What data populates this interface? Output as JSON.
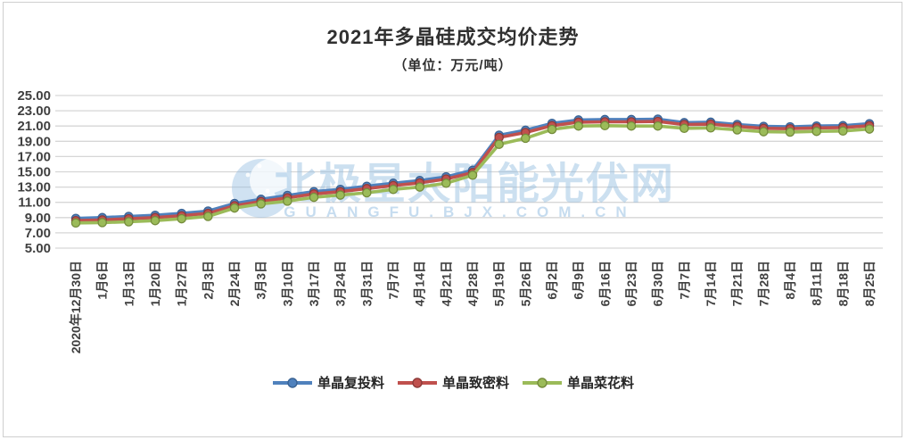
{
  "title": "2021年多晶硅成交均价走势",
  "subtitle": "（单位：万元/吨）",
  "watermark": {
    "brand": "北极星太阳能光伏网",
    "url_text": "GUANGFU.BJX.COM.CN",
    "logo": "crescent-moon-stars-icon"
  },
  "colors": {
    "series_blue": "#4F81BD",
    "series_blue_dark": "#3A6394",
    "series_red": "#C0504D",
    "series_red_dark": "#8E3B39",
    "series_green": "#9BBB59",
    "series_green_dark": "#758C3C",
    "grid": "#D6D6D6",
    "axis_text": "#404040",
    "watermark_blue": "#8FBBE0"
  },
  "chart_data": {
    "type": "line",
    "title": "2021年多晶硅成交均价走势",
    "subtitle_unit": "（单位：万元/吨）",
    "ylim": [
      5,
      25
    ],
    "ytick_step": 2,
    "yticks": [
      "25.00",
      "23.00",
      "21.00",
      "19.00",
      "17.00",
      "15.00",
      "13.00",
      "11.00",
      "9.00",
      "7.00",
      "5.00"
    ],
    "grid": true,
    "legend_position": "bottom",
    "categories": [
      "2020年12月30日",
      "1月6日",
      "1月13日",
      "1月20日",
      "1月27日",
      "2月3日",
      "2月24日",
      "3月3日",
      "3月10日",
      "3月17日",
      "3月24日",
      "3月31日",
      "7月7日",
      "4月14日",
      "4月21日",
      "4月28日",
      "5月19日",
      "5月26日",
      "6月2日",
      "6月9日",
      "6月16日",
      "6月23日",
      "6月30日",
      "7月7日",
      "7月14日",
      "7月21日",
      "7月28日",
      "8月4日",
      "8月11日",
      "8月18日",
      "8月25日"
    ],
    "series": [
      {
        "name": "单晶复投料",
        "color_key": "series_blue",
        "ring_key": "series_blue_dark",
        "values": [
          8.9,
          9.0,
          9.15,
          9.3,
          9.55,
          9.85,
          10.85,
          11.4,
          11.9,
          12.4,
          12.7,
          13.1,
          13.5,
          13.85,
          14.35,
          15.2,
          19.8,
          20.45,
          21.35,
          21.8,
          21.85,
          21.85,
          21.9,
          21.45,
          21.5,
          21.2,
          20.95,
          20.9,
          21.0,
          21.05,
          21.3
        ]
      },
      {
        "name": "单晶致密料",
        "color_key": "series_red",
        "ring_key": "series_red_dark",
        "values": [
          8.6,
          8.7,
          8.85,
          9.0,
          9.25,
          9.55,
          10.55,
          11.1,
          11.6,
          12.1,
          12.4,
          12.8,
          13.2,
          13.55,
          14.05,
          14.9,
          19.5,
          20.15,
          21.05,
          21.5,
          21.55,
          21.55,
          21.6,
          21.2,
          21.25,
          20.95,
          20.7,
          20.65,
          20.75,
          20.8,
          21.05
        ]
      },
      {
        "name": "单晶菜花料",
        "color_key": "series_green",
        "ring_key": "series_green_dark",
        "values": [
          8.3,
          8.35,
          8.45,
          8.6,
          8.85,
          9.15,
          10.25,
          10.8,
          11.15,
          11.65,
          11.95,
          12.25,
          12.7,
          13.0,
          13.5,
          14.55,
          18.6,
          19.4,
          20.55,
          21.0,
          21.05,
          21.0,
          21.0,
          20.7,
          20.75,
          20.5,
          20.25,
          20.2,
          20.3,
          20.35,
          20.6
        ]
      }
    ]
  }
}
